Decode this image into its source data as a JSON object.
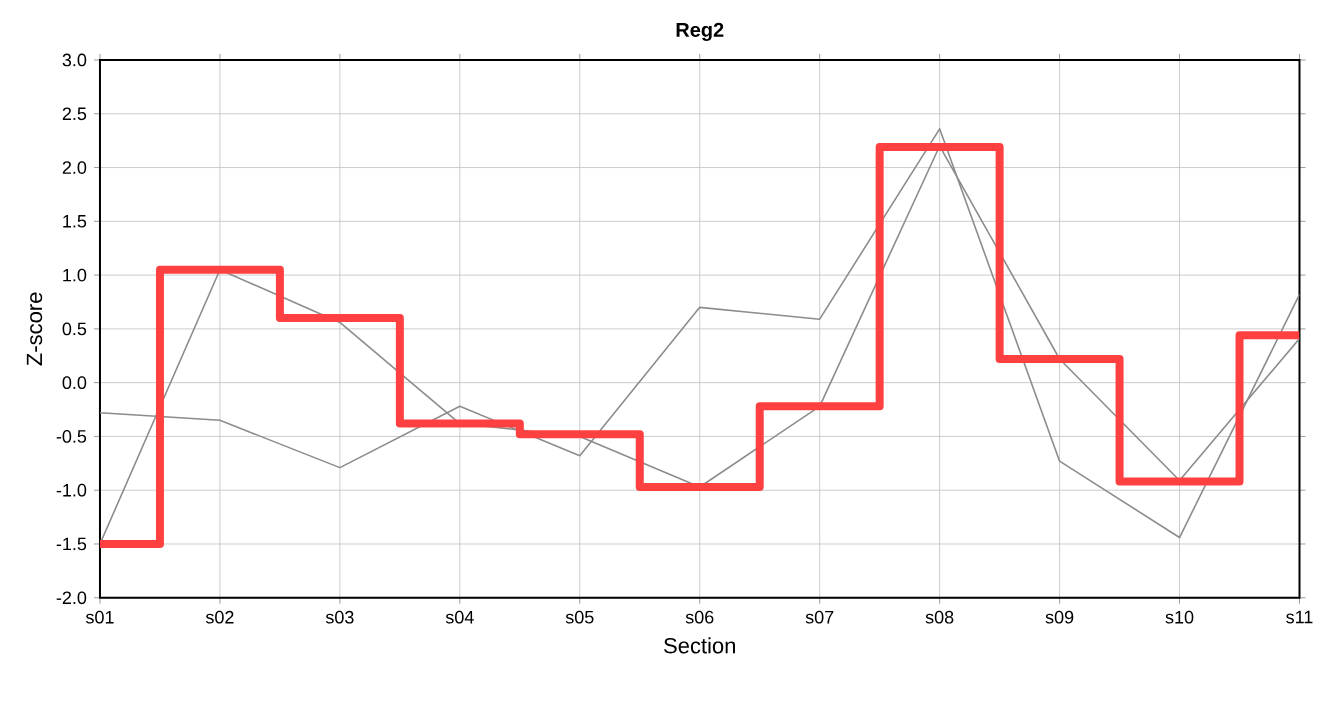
{
  "chart_data": {
    "type": "line",
    "title": "Reg2",
    "xlabel": "Section",
    "ylabel": "Z-score",
    "categories": [
      "s01",
      "s02",
      "s03",
      "s04",
      "s05",
      "s06",
      "s07",
      "s08",
      "s09",
      "s10",
      "s11"
    ],
    "series": [
      {
        "color": "#8c8c8c",
        "values": [
          -1.5,
          1.05,
          0.56,
          -0.38,
          -0.5,
          -0.97,
          -0.22,
          2.2,
          0.22,
          -0.91,
          0.41
        ]
      },
      {
        "color": "#8c8c8c",
        "values": [
          -0.28,
          -0.35,
          -0.79,
          -0.22,
          -0.68,
          0.7,
          0.59,
          2.36,
          -0.73,
          -1.44,
          0.82
        ]
      },
      {
        "type": "step",
        "color": "#ff4040",
        "values": [
          -1.5,
          1.05,
          0.6,
          -0.38,
          -0.48,
          -0.97,
          -0.22,
          2.19,
          0.22,
          -0.92,
          0.44
        ]
      }
    ],
    "ylim": [
      -2,
      3
    ],
    "yticks": [
      {
        "value": -2,
        "label": "-2.0"
      },
      {
        "value": -1.5,
        "label": "-1.5"
      },
      {
        "value": -1,
        "label": "-1.0"
      },
      {
        "value": -0.5,
        "label": "-0.5"
      },
      {
        "value": 0,
        "label": "0.0"
      },
      {
        "value": 0.5,
        "label": "0.5"
      },
      {
        "value": 1,
        "label": "1.0"
      },
      {
        "value": 1.5,
        "label": "1.5"
      },
      {
        "value": 2,
        "label": "2.0"
      },
      {
        "value": 2.5,
        "label": "2.5"
      },
      {
        "value": 3,
        "label": "3.0"
      }
    ],
    "grid": true,
    "marker": "none",
    "line_style": "solid"
  }
}
